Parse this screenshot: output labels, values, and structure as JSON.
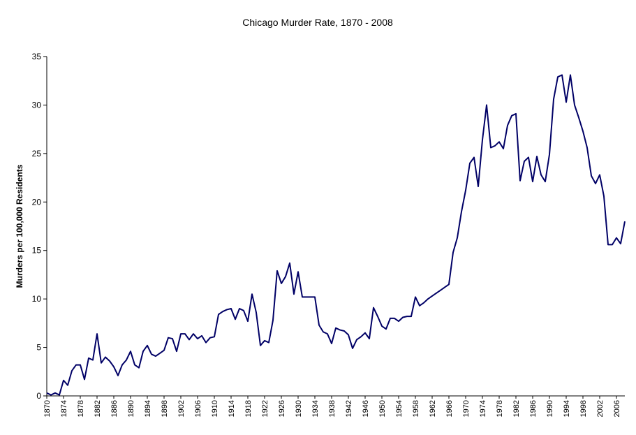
{
  "chart_data": {
    "type": "line",
    "title": "Chicago Murder Rate, 1870 - 2008",
    "ylabel": "Murders per 100,000 Residents",
    "x": [
      1870,
      1871,
      1872,
      1873,
      1874,
      1875,
      1876,
      1877,
      1878,
      1879,
      1880,
      1881,
      1882,
      1883,
      1884,
      1885,
      1886,
      1887,
      1888,
      1889,
      1890,
      1891,
      1892,
      1893,
      1894,
      1895,
      1896,
      1897,
      1898,
      1899,
      1900,
      1901,
      1902,
      1903,
      1904,
      1905,
      1906,
      1907,
      1908,
      1909,
      1910,
      1911,
      1912,
      1913,
      1914,
      1915,
      1916,
      1917,
      1918,
      1919,
      1920,
      1921,
      1922,
      1923,
      1924,
      1925,
      1926,
      1927,
      1928,
      1929,
      1930,
      1931,
      1932,
      1933,
      1934,
      1935,
      1936,
      1937,
      1938,
      1939,
      1940,
      1941,
      1942,
      1943,
      1944,
      1945,
      1946,
      1947,
      1948,
      1949,
      1950,
      1951,
      1952,
      1953,
      1954,
      1955,
      1956,
      1957,
      1958,
      1959,
      1960,
      1961,
      1962,
      1963,
      1964,
      1965,
      1966,
      1967,
      1968,
      1969,
      1970,
      1971,
      1972,
      1973,
      1974,
      1975,
      1976,
      1977,
      1978,
      1979,
      1980,
      1981,
      1982,
      1983,
      1984,
      1985,
      1986,
      1987,
      1988,
      1989,
      1990,
      1991,
      1992,
      1993,
      1994,
      1995,
      1996,
      1997,
      1998,
      1999,
      2000,
      2001,
      2002,
      2003,
      2004,
      2005,
      2006,
      2007,
      2008
    ],
    "series": [
      {
        "name": "Murder rate",
        "color": "#000066",
        "values": [
          0.3,
          0.1,
          0.3,
          0.1,
          1.6,
          1.1,
          2.6,
          3.2,
          3.2,
          1.7,
          3.9,
          3.7,
          6.4,
          3.4,
          4.0,
          3.6,
          3.0,
          2.1,
          3.2,
          3.7,
          4.6,
          3.2,
          2.9,
          4.6,
          5.2,
          4.3,
          4.1,
          4.4,
          4.7,
          6.0,
          5.9,
          4.6,
          6.4,
          6.4,
          5.8,
          6.4,
          5.9,
          6.2,
          5.5,
          6.0,
          6.1,
          8.4,
          8.7,
          8.9,
          9.0,
          7.9,
          9.0,
          8.8,
          7.7,
          10.5,
          8.6,
          5.2,
          5.7,
          5.5,
          7.8,
          12.9,
          11.6,
          12.3,
          13.7,
          10.5,
          12.8,
          10.2,
          10.2,
          10.2,
          10.2,
          7.3,
          6.6,
          6.4,
          5.4,
          7.0,
          6.8,
          6.7,
          6.3,
          4.9,
          5.8,
          6.1,
          6.5,
          5.9,
          9.1,
          8.2,
          7.2,
          6.9,
          8.0,
          8.0,
          7.7,
          8.1,
          8.2,
          8.2,
          10.2,
          9.3,
          9.6,
          10.0,
          10.3,
          10.6,
          10.9,
          11.2,
          11.5,
          14.8,
          16.3,
          19.0,
          21.2,
          24.0,
          24.6,
          21.6,
          26.4,
          30.0,
          25.6,
          25.8,
          26.2,
          25.5,
          27.9,
          28.9,
          29.1,
          22.2,
          24.2,
          24.6,
          22.1,
          24.7,
          22.8,
          22.1,
          24.9,
          30.6,
          32.9,
          33.1,
          30.3,
          33.1,
          30.0,
          28.7,
          27.3,
          25.6,
          22.7,
          21.9,
          22.8,
          20.6,
          15.6,
          15.6,
          16.3,
          15.7,
          18.0
        ]
      }
    ],
    "xlim": [
      1870,
      2008
    ],
    "xticks": [
      1870,
      1874,
      1878,
      1882,
      1886,
      1890,
      1894,
      1898,
      1902,
      1906,
      1910,
      1914,
      1918,
      1922,
      1926,
      1930,
      1934,
      1938,
      1942,
      1946,
      1950,
      1954,
      1958,
      1962,
      1966,
      1970,
      1974,
      1978,
      1982,
      1986,
      1990,
      1994,
      1998,
      2002,
      2006
    ],
    "ylim": [
      0,
      35
    ],
    "yticks": [
      0,
      5,
      10,
      15,
      20,
      25,
      30,
      35
    ],
    "grid": false
  }
}
